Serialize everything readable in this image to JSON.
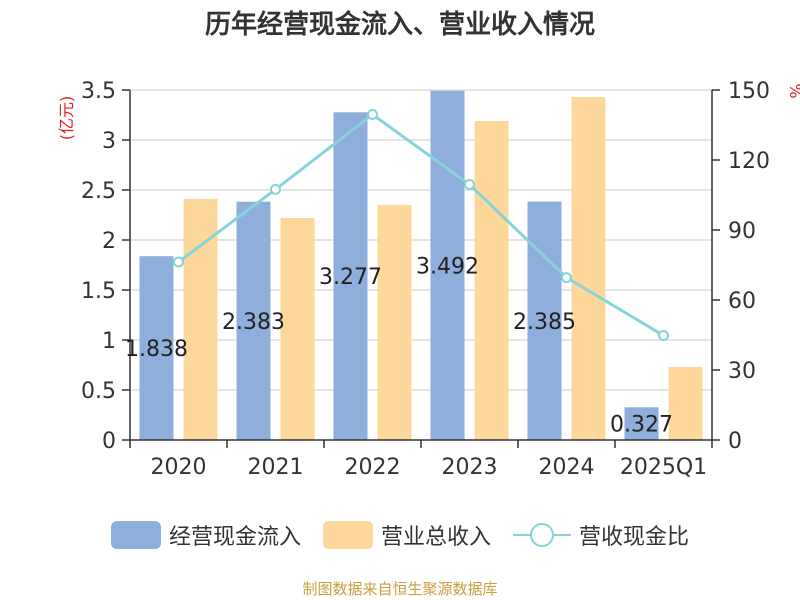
{
  "chart_data": {
    "type": "bar",
    "title": "历年经营现金流入、营业收入情况",
    "categories": [
      "2020",
      "2021",
      "2022",
      "2023",
      "2024",
      "2025Q1"
    ],
    "y_left": {
      "label": "(亿元)",
      "ylim": [
        0,
        3.5
      ],
      "ticks": [
        "0",
        "0.5",
        "1",
        "1.5",
        "2",
        "2.5",
        "3",
        "3.5"
      ]
    },
    "y_right": {
      "label": "%",
      "ylim": [
        0,
        150
      ],
      "ticks": [
        "0",
        "30",
        "60",
        "90",
        "120",
        "150"
      ]
    },
    "series": [
      {
        "name": "经营现金流入",
        "type": "bar",
        "axis": "left",
        "color": "#8eaedc",
        "values": [
          1.838,
          2.383,
          3.277,
          3.492,
          2.385,
          0.327
        ],
        "labels": [
          "1.838",
          "2.383",
          "3.277",
          "3.492",
          "2.385",
          "0.327"
        ]
      },
      {
        "name": "营业总收入",
        "type": "bar",
        "axis": "left",
        "color": "#fdd89a",
        "values": [
          2.41,
          2.22,
          2.35,
          3.19,
          3.43,
          0.73
        ]
      },
      {
        "name": "营收现金比",
        "type": "line",
        "axis": "right",
        "color": "#86d4d8",
        "values": [
          76.3,
          107.4,
          139.5,
          109.5,
          69.6,
          44.8
        ]
      }
    ],
    "grid": true,
    "legend_position": "bottom"
  },
  "source_note": "制图数据来自恒生聚源数据库"
}
